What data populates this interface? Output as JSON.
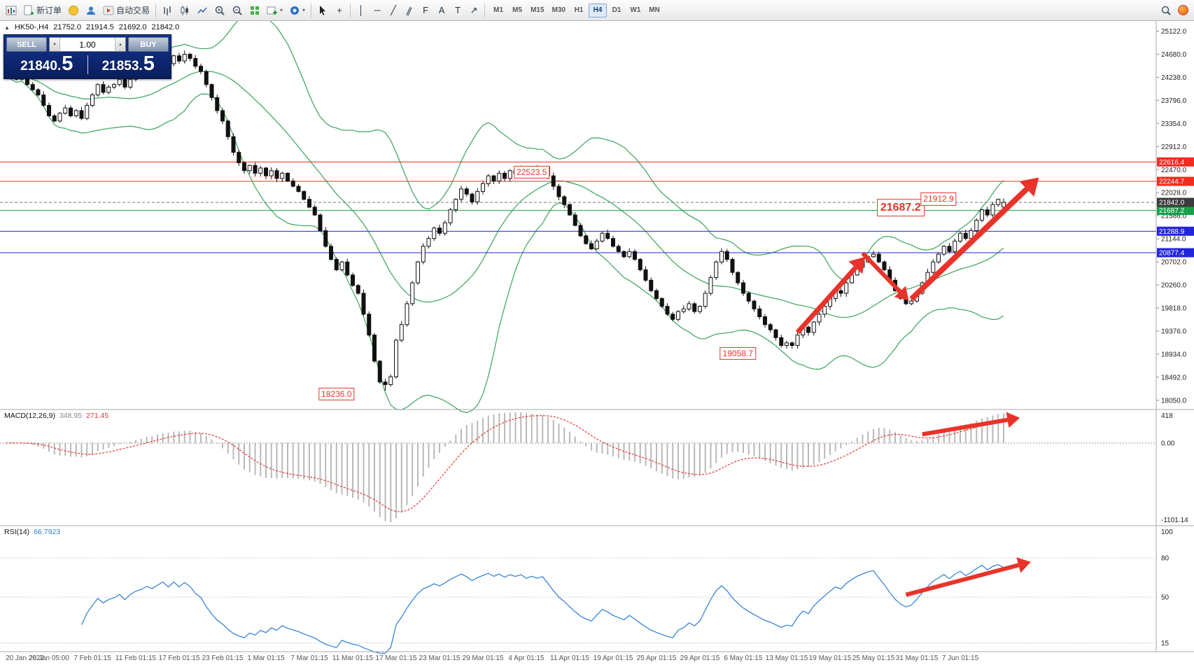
{
  "toolbar": {
    "new_order_label": "新订单",
    "autotrading_label": "自动交易",
    "timeframes": [
      "M1",
      "M5",
      "M15",
      "M30",
      "H1",
      "H4",
      "D1",
      "W1",
      "MN"
    ],
    "active_timeframe": "H4",
    "icons": {
      "dropdown": "▾",
      "crosshair": "+",
      "vertical_line": "│",
      "horizontal_line": "─",
      "trendline": "╱",
      "channel": "∥",
      "fibonacci": "F",
      "text_tool": "A",
      "label_tool": "T",
      "arrows_tool": "↗",
      "collapse": "▲",
      "spin_up": "▲",
      "spin_down": "▼"
    }
  },
  "chart_header": {
    "symbol_period": "HK50-,H4",
    "open": "21752.0",
    "high": "21914.5",
    "low": "21692.0",
    "close": "21842.0"
  },
  "trade_panel": {
    "sell_label": "SELL",
    "buy_label": "BUY",
    "lot_size": "1.00",
    "sell_price_small": "21840.",
    "sell_price_big": "5",
    "buy_price_small": "21853.",
    "buy_price_big": "5"
  },
  "chart_data": {
    "type": "candlestick",
    "symbol": "HK50-",
    "period": "H4",
    "y_range": {
      "max": 25290,
      "min": 17900
    },
    "y_ticks": [
      25122.0,
      24680.0,
      24238.0,
      23796.0,
      23354.0,
      22912.0,
      22470.0,
      22028.0,
      21586.0,
      21144.0,
      20702.0,
      20260.0,
      19818.0,
      19376.0,
      18934.0,
      18492.0,
      18050.0
    ],
    "x_labels": [
      "20 Jan 2022",
      "26 Jan 05:00",
      "7 Feb 01:15",
      "11 Feb 01:15",
      "17 Feb 01:15",
      "23 Feb 01:15",
      "1 Mar 01:15",
      "7 Mar 01:15",
      "11 Mar 01:15",
      "17 Mar 01:15",
      "23 Mar 01:15",
      "29 Mar 01:15",
      "4 Apr 01:15",
      "11 Apr 01:15",
      "19 Apr 01:15",
      "25 Apr 01:15",
      "29 Apr 01:15",
      "6 May 01:15",
      "13 May 01:15",
      "19 May 01:15",
      "25 May 01:15",
      "31 May 01:15",
      "7 Jun 01:15"
    ],
    "closes": [
      24250,
      24350,
      24200,
      24300,
      24100,
      24000,
      23900,
      23700,
      23500,
      23400,
      23550,
      23650,
      23500,
      23600,
      23450,
      23700,
      23900,
      24100,
      23950,
      24050,
      24100,
      24200,
      24050,
      24200,
      24300,
      24350,
      24450,
      24400,
      24500,
      24600,
      24500,
      24650,
      24550,
      24680,
      24600,
      24450,
      24350,
      24100,
      23850,
      23600,
      23400,
      23100,
      22800,
      22600,
      22450,
      22550,
      22400,
      22500,
      22350,
      22450,
      22300,
      22400,
      22250,
      22150,
      22050,
      21900,
      21750,
      21600,
      21300,
      21000,
      20750,
      20550,
      20700,
      20450,
      20250,
      20100,
      19700,
      19300,
      18800,
      18400,
      18350,
      18500,
      19200,
      19500,
      19900,
      20300,
      20700,
      21000,
      21150,
      21350,
      21250,
      21450,
      21700,
      21900,
      22100,
      22000,
      21850,
      22050,
      22200,
      22350,
      22250,
      22400,
      22300,
      22450,
      22400,
      22500,
      22400,
      22500,
      22450,
      22520,
      22350,
      22150,
      21950,
      21800,
      21600,
      21400,
      21200,
      21050,
      20950,
      21100,
      21250,
      21150,
      21000,
      20900,
      20800,
      20900,
      20750,
      20550,
      20350,
      20150,
      20000,
      19850,
      19700,
      19600,
      19750,
      19800,
      19900,
      19750,
      19850,
      20100,
      20400,
      20700,
      20900,
      20750,
      20500,
      20300,
      20100,
      19950,
      19800,
      19650,
      19500,
      19400,
      19250,
      19100,
      19150,
      19100,
      19300,
      19450,
      19350,
      19550,
      19700,
      19850,
      20000,
      20150,
      20100,
      20300,
      20450,
      20600,
      20700,
      20800,
      20850,
      20700,
      20550,
      20350,
      20150,
      20000,
      19900,
      19950,
      20100,
      20300,
      20500,
      20700,
      20850,
      21000,
      20900,
      21100,
      21250,
      21150,
      21300,
      21500,
      21700,
      21600,
      21800,
      21900,
      21842
    ],
    "ohlc_overrides": {
      "open": {
        "184": 21752.0
      },
      "high": {
        "33": 24750,
        "99": 22523.5,
        "183": 21912.9,
        "184": 21914.5
      },
      "low": {
        "70": 18236.0,
        "143": 19058.7,
        "184": 21692.0
      }
    },
    "levels": [
      {
        "price": 22616.4,
        "label": "22616.4",
        "color": "#f22b20"
      },
      {
        "price": 22244.7,
        "label": "22244.7",
        "color": "#f22b20"
      },
      {
        "price": 21687.2,
        "label": "21687.2",
        "color": "#18a04a"
      },
      {
        "price": 21288.9,
        "label": "21288.9",
        "color": "#2326d8"
      },
      {
        "price": 20877.4,
        "label": "20877.4",
        "color": "#2326d8"
      }
    ],
    "current_price": {
      "price": 21842.0,
      "label": "21842.0",
      "color": "#3c3c3c"
    },
    "annotations": [
      {
        "text": "18236.0",
        "i": 61,
        "price": 18170,
        "big": false
      },
      {
        "text": "19058.7",
        "i": 135,
        "price": 18950,
        "big": false
      },
      {
        "text": "22523.5",
        "i": 97,
        "price": 22420,
        "big": false
      },
      {
        "text": "21687.2",
        "i": 165,
        "price": 21740,
        "big": true
      },
      {
        "text": "21912.9",
        "i": 172,
        "price": 21905,
        "big": false
      }
    ],
    "arrows": [
      {
        "pane": "main",
        "i1": 146,
        "v1": 19350,
        "i2": 158.5,
        "v2": 20800,
        "w": 7
      },
      {
        "pane": "main",
        "i1": 158,
        "v1": 20870,
        "i2": 166.5,
        "v2": 19960,
        "w": 6
      },
      {
        "pane": "main",
        "i1": 167,
        "v1": 19990,
        "i2": 190.5,
        "v2": 22320,
        "w": 8
      },
      {
        "pane": "macd",
        "i1": 169,
        "v1": 0.2,
        "i2": 187,
        "v2": 0.05,
        "w": 6
      },
      {
        "pane": "rsi",
        "i1": 166,
        "v1": 0.55,
        "i2": 189,
        "v2": 0.28,
        "w": 6
      }
    ],
    "bollinger": {
      "period": 20,
      "deviation": 2,
      "color": "#3aa35c"
    },
    "macd_panel": {
      "name": "MACD(12,26,9)",
      "value_main": "348.95",
      "value_signal": "271.45",
      "axis_labels": [
        "418",
        "0.00",
        "-1101.14"
      ]
    },
    "rsi_panel": {
      "name": "RSI(14)",
      "value": "66.7923",
      "axis_labels": [
        "100",
        "80",
        "50",
        "15"
      ],
      "levels": [
        80,
        50,
        15
      ]
    }
  }
}
